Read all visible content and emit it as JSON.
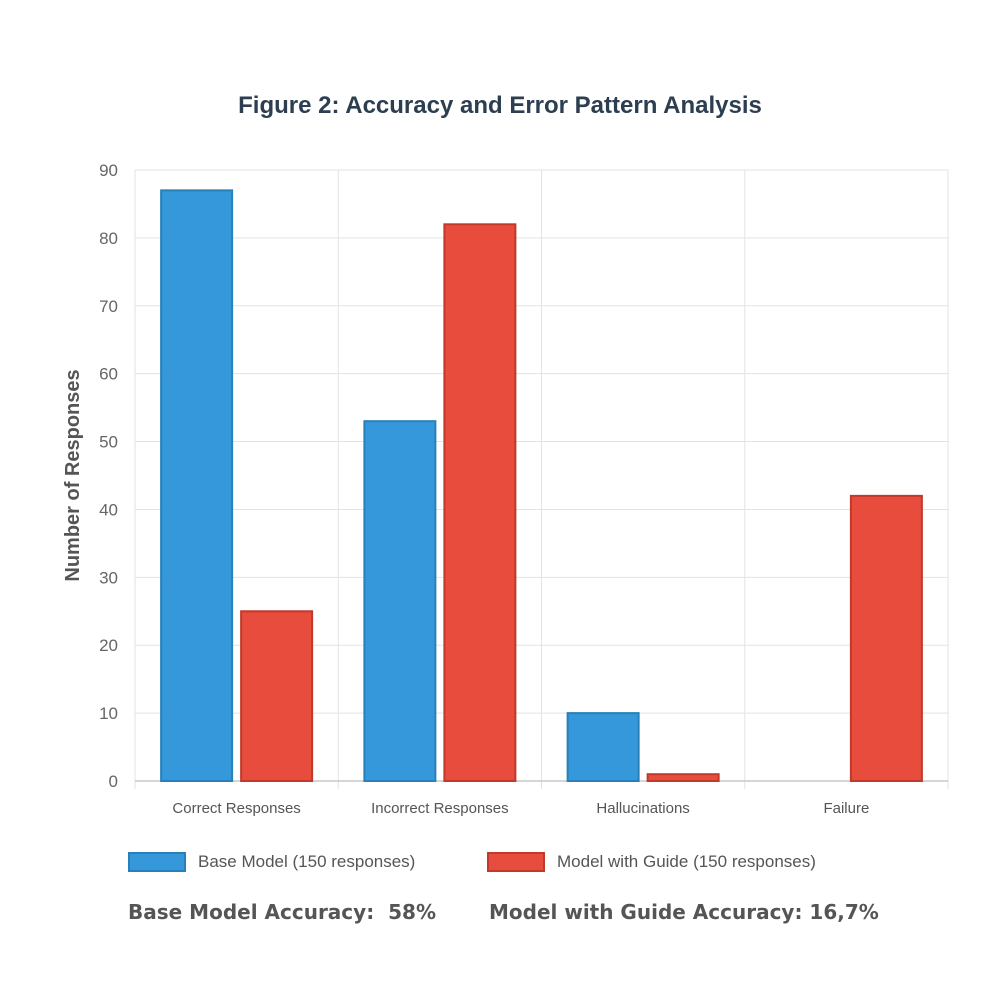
{
  "chart_data": {
    "type": "bar",
    "title": "Figure 2: Accuracy and Error Pattern Analysis",
    "xlabel": "",
    "ylabel": "Number of Responses",
    "categories": [
      "Correct Responses",
      "Incorrect Responses",
      "Hallucinations",
      "Failure"
    ],
    "series": [
      {
        "name": "Base Model (150 responses)",
        "values": [
          87,
          53,
          10,
          0
        ],
        "color": "#3498db",
        "border": "#2980b9"
      },
      {
        "name": "Model with Guide (150 responses)",
        "values": [
          25,
          82,
          1,
          42
        ],
        "color": "#e74c3c",
        "border": "#c0392b"
      }
    ],
    "ylim": [
      0,
      90
    ],
    "yticks": [
      0,
      10,
      20,
      30,
      40,
      50,
      60,
      70,
      80,
      90
    ],
    "grid": true,
    "legend_position": "bottom"
  },
  "footer": {
    "base_accuracy": "Base Model Accuracy:  58%",
    "guide_accuracy": "Model with Guide Accuracy: 16,7%"
  }
}
